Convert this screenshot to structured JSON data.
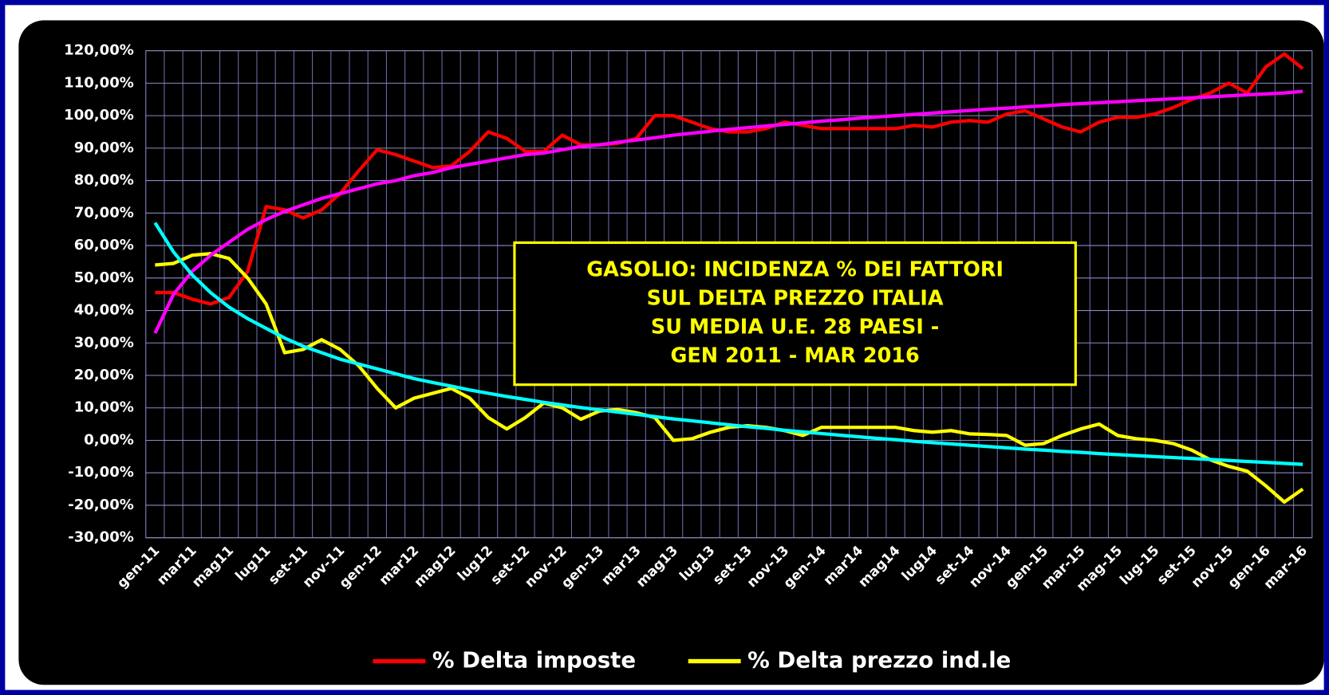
{
  "chart_data": {
    "type": "line",
    "title": [
      "GASOLIO: INCIDENZA % DEI FATTORI",
      "SUL DELTA PREZZO ITALIA",
      "SU MEDIA U.E. 28 PAESI -",
      "GEN 2011 - MAR 2016"
    ],
    "categories": [
      "gen-11",
      null,
      "mar11",
      null,
      "mag11",
      null,
      "lug11",
      null,
      "set-11",
      null,
      "nov-11",
      null,
      "gen-12",
      null,
      "mar12",
      null,
      "mag12",
      null,
      "lug12",
      null,
      "set-12",
      null,
      "nov-12",
      null,
      "gen-13",
      null,
      "mar13",
      null,
      "mag13",
      null,
      "lug13",
      null,
      "set-13",
      null,
      "nov-13",
      null,
      "gen-14",
      null,
      "mar14",
      null,
      "mag14",
      null,
      "lug14",
      null,
      "set-14",
      null,
      "nov-14",
      null,
      "gen-15",
      null,
      "mar-15",
      null,
      "mag-15",
      null,
      "lug-15",
      null,
      "set-15",
      null,
      "nov-15",
      null,
      "gen-16",
      null,
      "mar-16"
    ],
    "series": [
      {
        "name": "% Delta imposte",
        "color": "#ff0000",
        "values": [
          45.5,
          45.5,
          43.5,
          42,
          44,
          52,
          72,
          71,
          68.5,
          71,
          76,
          83,
          89.5,
          88,
          86,
          84,
          84.5,
          89,
          95,
          93,
          89,
          89,
          94,
          91,
          91,
          91.5,
          93,
          100,
          100,
          98,
          96,
          95,
          95,
          96,
          98,
          97,
          96,
          96,
          96,
          96,
          96,
          97,
          96.5,
          98,
          98.5,
          98,
          100.5,
          101.5,
          99,
          96.5,
          95,
          98,
          99.5,
          99.5,
          100.5,
          102.5,
          105,
          107,
          110,
          107,
          115,
          119,
          114.5
        ]
      },
      {
        "name": "% Delta prezzo ind.le",
        "color": "#ffff00",
        "values": [
          54,
          54.5,
          57,
          57.5,
          56,
          50,
          42,
          27,
          28,
          31,
          28,
          23,
          16,
          10,
          13,
          14.5,
          16,
          13,
          7,
          3.5,
          7,
          11.5,
          10,
          6.5,
          9,
          9.5,
          8.5,
          7,
          0,
          0.5,
          2.5,
          4,
          4.5,
          4,
          3,
          1.5,
          4,
          4,
          4,
          4,
          4,
          3,
          2.5,
          3,
          2,
          1.8,
          1.5,
          -1.5,
          -1,
          1.5,
          3.5,
          5,
          1.5,
          0.5,
          0,
          -1,
          -3,
          -6,
          -8,
          -9.5,
          -14,
          -19,
          -15
        ]
      },
      {
        "color": "#ff00ff",
        "values": [
          33,
          45,
          52,
          57,
          61,
          65,
          68,
          70.5,
          72.5,
          74.5,
          76,
          77.5,
          79,
          80,
          81.5,
          82.5,
          84,
          85,
          86,
          87,
          88,
          88.5,
          89.5,
          90.5,
          91,
          91.8,
          92.5,
          93.2,
          94,
          94.6,
          95.2,
          95.8,
          96.3,
          96.8,
          97.3,
          97.8,
          98.3,
          98.7,
          99.2,
          99.6,
          100,
          100.4,
          100.8,
          101.2,
          101.6,
          102,
          102.3,
          102.7,
          103,
          103.4,
          103.7,
          104,
          104.3,
          104.6,
          104.9,
          105.2,
          105.5,
          105.8,
          106.1,
          106.4,
          106.7,
          107,
          107.5
        ]
      },
      {
        "color": "#00ffff",
        "values": [
          67,
          58,
          51,
          45.5,
          41,
          37.5,
          34.5,
          31.5,
          29,
          27,
          25,
          23.5,
          22,
          20.5,
          19,
          17.8,
          16.7,
          15.5,
          14.5,
          13.5,
          12.6,
          11.7,
          10.9,
          10.1,
          9.4,
          8.7,
          8,
          7.3,
          6.6,
          6,
          5.4,
          4.8,
          4.2,
          3.7,
          3.1,
          2.6,
          2.1,
          1.6,
          1.1,
          0.6,
          0.2,
          -0.3,
          -0.7,
          -1.1,
          -1.5,
          -1.9,
          -2.3,
          -2.7,
          -3,
          -3.4,
          -3.7,
          -4.1,
          -4.4,
          -4.7,
          -5,
          -5.3,
          -5.6,
          -5.9,
          -6.2,
          -6.5,
          -6.8,
          -7.1,
          -7.4
        ]
      }
    ],
    "ylim": [
      -30,
      120
    ],
    "yticks": [
      {
        "value": 120,
        "label": "120,00%"
      },
      {
        "value": 110,
        "label": "110,00%"
      },
      {
        "value": 100,
        "label": "100,00%"
      },
      {
        "value": 90,
        "label": "90,00%"
      },
      {
        "value": 80,
        "label": "80,00%"
      },
      {
        "value": 70,
        "label": "70,00%"
      },
      {
        "value": 60,
        "label": "60,00%"
      },
      {
        "value": 50,
        "label": "50,00%"
      },
      {
        "value": 40,
        "label": "40,00%"
      },
      {
        "value": 30,
        "label": "30,00%"
      },
      {
        "value": 20,
        "label": "20,00%"
      },
      {
        "value": 10,
        "label": "10,00%"
      },
      {
        "value": 0,
        "label": "0,00%"
      },
      {
        "value": -10,
        "label": "-10,00%"
      },
      {
        "value": -20,
        "label": "-20,00%"
      },
      {
        "value": -30,
        "label": "-30,00%"
      }
    ],
    "grid": true,
    "legend": "bottom"
  }
}
